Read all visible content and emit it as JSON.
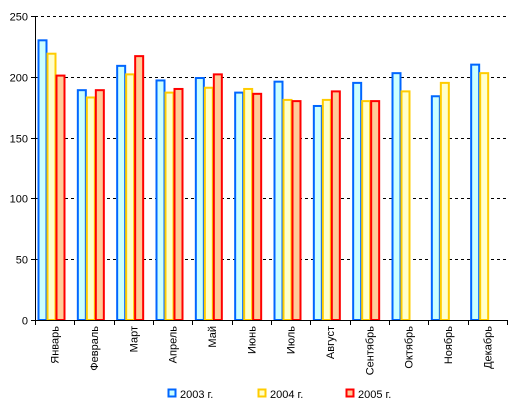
{
  "chart_data": {
    "type": "bar",
    "title": "",
    "xlabel": "",
    "ylabel": "",
    "ylim": [
      0,
      250
    ],
    "yticks": [
      0,
      50,
      100,
      150,
      200,
      250
    ],
    "grid": true,
    "legend_position": "bottom",
    "categories": [
      "Январь",
      "Февраль",
      "Март",
      "Апрель",
      "Май",
      "Июнь",
      "Июль",
      "Август",
      "Сентябрь",
      "Октябрь",
      "Ноябрь",
      "Декабрь"
    ],
    "series": [
      {
        "name": "2003 г.",
        "values": [
          230,
          189,
          209,
          197,
          199,
          187,
          196,
          176,
          195,
          203,
          184,
          210
        ],
        "fill": "#ccffff",
        "stroke": "#0066ff"
      },
      {
        "name": "2004 г.",
        "values": [
          219,
          183,
          202,
          187,
          191,
          190,
          181,
          181,
          180,
          188,
          195,
          203
        ],
        "fill": "#ffffcc",
        "stroke": "#ffcc00"
      },
      {
        "name": "2005 г.",
        "values": [
          201,
          189,
          217,
          190,
          202,
          186,
          180,
          188,
          180,
          null,
          null,
          null
        ],
        "fill": "#ffcc99",
        "stroke": "#ff0000"
      }
    ]
  }
}
